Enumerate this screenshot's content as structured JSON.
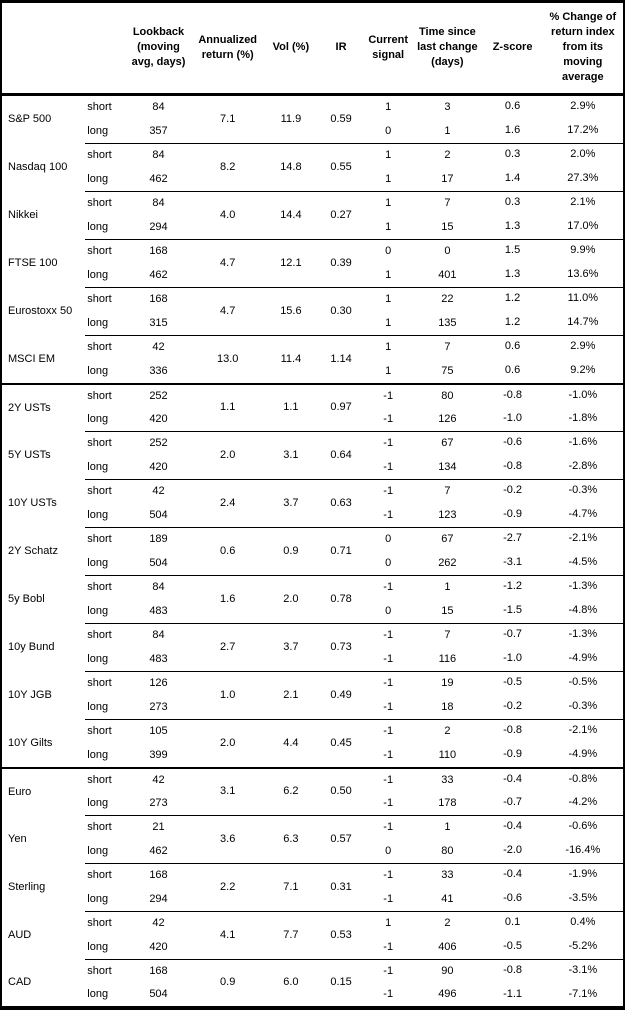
{
  "header_labels": {
    "asset": "",
    "position": "",
    "lookback": "Lookback (moving avg, days)",
    "annualized_return": "Annualized return (%)",
    "vol": "Vol (%)",
    "ir": "IR",
    "current_signal": "Current signal",
    "time_since": "Time since last change (days)",
    "z_score": "Z-score",
    "pct_change": "% Change of return index from its moving average"
  },
  "position_labels": [
    "short",
    "long"
  ],
  "colors": {
    "border": "#000000",
    "text": "#000000",
    "background": "#ffffff"
  },
  "sections": [
    [
      {
        "asset": "S&P 500",
        "annualized_return": "7.1",
        "vol": "11.9",
        "ir": "0.59",
        "rows": [
          {
            "position": "short",
            "lookback": "84",
            "signal": "1",
            "time_since": "3",
            "z_score": "0.6",
            "pct_change": "2.9%"
          },
          {
            "position": "long",
            "lookback": "357",
            "signal": "0",
            "time_since": "1",
            "z_score": "1.6",
            "pct_change": "17.2%"
          }
        ]
      },
      {
        "asset": "Nasdaq 100",
        "annualized_return": "8.2",
        "vol": "14.8",
        "ir": "0.55",
        "rows": [
          {
            "position": "short",
            "lookback": "84",
            "signal": "1",
            "time_since": "2",
            "z_score": "0.3",
            "pct_change": "2.0%"
          },
          {
            "position": "long",
            "lookback": "462",
            "signal": "1",
            "time_since": "17",
            "z_score": "1.4",
            "pct_change": "27.3%"
          }
        ]
      },
      {
        "asset": "Nikkei",
        "annualized_return": "4.0",
        "vol": "14.4",
        "ir": "0.27",
        "rows": [
          {
            "position": "short",
            "lookback": "84",
            "signal": "1",
            "time_since": "7",
            "z_score": "0.3",
            "pct_change": "2.1%"
          },
          {
            "position": "long",
            "lookback": "294",
            "signal": "1",
            "time_since": "15",
            "z_score": "1.3",
            "pct_change": "17.0%"
          }
        ]
      },
      {
        "asset": "FTSE 100",
        "annualized_return": "4.7",
        "vol": "12.1",
        "ir": "0.39",
        "rows": [
          {
            "position": "short",
            "lookback": "168",
            "signal": "0",
            "time_since": "0",
            "z_score": "1.5",
            "pct_change": "9.9%"
          },
          {
            "position": "long",
            "lookback": "462",
            "signal": "1",
            "time_since": "401",
            "z_score": "1.3",
            "pct_change": "13.6%"
          }
        ]
      },
      {
        "asset": "Eurostoxx 50",
        "annualized_return": "4.7",
        "vol": "15.6",
        "ir": "0.30",
        "rows": [
          {
            "position": "short",
            "lookback": "168",
            "signal": "1",
            "time_since": "22",
            "z_score": "1.2",
            "pct_change": "11.0%"
          },
          {
            "position": "long",
            "lookback": "315",
            "signal": "1",
            "time_since": "135",
            "z_score": "1.2",
            "pct_change": "14.7%"
          }
        ]
      },
      {
        "asset": "MSCI EM",
        "annualized_return": "13.0",
        "vol": "11.4",
        "ir": "1.14",
        "rows": [
          {
            "position": "short",
            "lookback": "42",
            "signal": "1",
            "time_since": "7",
            "z_score": "0.6",
            "pct_change": "2.9%"
          },
          {
            "position": "long",
            "lookback": "336",
            "signal": "1",
            "time_since": "75",
            "z_score": "0.6",
            "pct_change": "9.2%"
          }
        ]
      }
    ],
    [
      {
        "asset": "2Y USTs",
        "annualized_return": "1.1",
        "vol": "1.1",
        "ir": "0.97",
        "rows": [
          {
            "position": "short",
            "lookback": "252",
            "signal": "-1",
            "time_since": "80",
            "z_score": "-0.8",
            "pct_change": "-1.0%"
          },
          {
            "position": "long",
            "lookback": "420",
            "signal": "-1",
            "time_since": "126",
            "z_score": "-1.0",
            "pct_change": "-1.8%"
          }
        ]
      },
      {
        "asset": "5Y USTs",
        "annualized_return": "2.0",
        "vol": "3.1",
        "ir": "0.64",
        "rows": [
          {
            "position": "short",
            "lookback": "252",
            "signal": "-1",
            "time_since": "67",
            "z_score": "-0.6",
            "pct_change": "-1.6%"
          },
          {
            "position": "long",
            "lookback": "420",
            "signal": "-1",
            "time_since": "134",
            "z_score": "-0.8",
            "pct_change": "-2.8%"
          }
        ]
      },
      {
        "asset": "10Y USTs",
        "annualized_return": "2.4",
        "vol": "3.7",
        "ir": "0.63",
        "rows": [
          {
            "position": "short",
            "lookback": "42",
            "signal": "-1",
            "time_since": "7",
            "z_score": "-0.2",
            "pct_change": "-0.3%"
          },
          {
            "position": "long",
            "lookback": "504",
            "signal": "-1",
            "time_since": "123",
            "z_score": "-0.9",
            "pct_change": "-4.7%"
          }
        ]
      },
      {
        "asset": "2Y Schatz",
        "annualized_return": "0.6",
        "vol": "0.9",
        "ir": "0.71",
        "rows": [
          {
            "position": "short",
            "lookback": "189",
            "signal": "0",
            "time_since": "67",
            "z_score": "-2.7",
            "pct_change": "-2.1%"
          },
          {
            "position": "long",
            "lookback": "504",
            "signal": "0",
            "time_since": "262",
            "z_score": "-3.1",
            "pct_change": "-4.5%"
          }
        ]
      },
      {
        "asset": "5y Bobl",
        "annualized_return": "1.6",
        "vol": "2.0",
        "ir": "0.78",
        "rows": [
          {
            "position": "short",
            "lookback": "84",
            "signal": "-1",
            "time_since": "1",
            "z_score": "-1.2",
            "pct_change": "-1.3%"
          },
          {
            "position": "long",
            "lookback": "483",
            "signal": "0",
            "time_since": "15",
            "z_score": "-1.5",
            "pct_change": "-4.8%"
          }
        ]
      },
      {
        "asset": "10y Bund",
        "annualized_return": "2.7",
        "vol": "3.7",
        "ir": "0.73",
        "rows": [
          {
            "position": "short",
            "lookback": "84",
            "signal": "-1",
            "time_since": "7",
            "z_score": "-0.7",
            "pct_change": "-1.3%"
          },
          {
            "position": "long",
            "lookback": "483",
            "signal": "-1",
            "time_since": "116",
            "z_score": "-1.0",
            "pct_change": "-4.9%"
          }
        ]
      },
      {
        "asset": "10Y JGB",
        "annualized_return": "1.0",
        "vol": "2.1",
        "ir": "0.49",
        "rows": [
          {
            "position": "short",
            "lookback": "126",
            "signal": "-1",
            "time_since": "19",
            "z_score": "-0.5",
            "pct_change": "-0.5%"
          },
          {
            "position": "long",
            "lookback": "273",
            "signal": "-1",
            "time_since": "18",
            "z_score": "-0.2",
            "pct_change": "-0.3%"
          }
        ]
      },
      {
        "asset": "10Y Gilts",
        "annualized_return": "2.0",
        "vol": "4.4",
        "ir": "0.45",
        "rows": [
          {
            "position": "short",
            "lookback": "105",
            "signal": "-1",
            "time_since": "2",
            "z_score": "-0.8",
            "pct_change": "-2.1%"
          },
          {
            "position": "long",
            "lookback": "399",
            "signal": "-1",
            "time_since": "110",
            "z_score": "-0.9",
            "pct_change": "-4.9%"
          }
        ]
      }
    ],
    [
      {
        "asset": "Euro",
        "annualized_return": "3.1",
        "vol": "6.2",
        "ir": "0.50",
        "rows": [
          {
            "position": "short",
            "lookback": "42",
            "signal": "-1",
            "time_since": "33",
            "z_score": "-0.4",
            "pct_change": "-0.8%"
          },
          {
            "position": "long",
            "lookback": "273",
            "signal": "-1",
            "time_since": "178",
            "z_score": "-0.7",
            "pct_change": "-4.2%"
          }
        ]
      },
      {
        "asset": "Yen",
        "annualized_return": "3.6",
        "vol": "6.3",
        "ir": "0.57",
        "rows": [
          {
            "position": "short",
            "lookback": "21",
            "signal": "-1",
            "time_since": "1",
            "z_score": "-0.4",
            "pct_change": "-0.6%"
          },
          {
            "position": "long",
            "lookback": "462",
            "signal": "0",
            "time_since": "80",
            "z_score": "-2.0",
            "pct_change": "-16.4%"
          }
        ]
      },
      {
        "asset": "Sterling",
        "annualized_return": "2.2",
        "vol": "7.1",
        "ir": "0.31",
        "rows": [
          {
            "position": "short",
            "lookback": "168",
            "signal": "-1",
            "time_since": "33",
            "z_score": "-0.4",
            "pct_change": "-1.9%"
          },
          {
            "position": "long",
            "lookback": "294",
            "signal": "-1",
            "time_since": "41",
            "z_score": "-0.6",
            "pct_change": "-3.5%"
          }
        ]
      },
      {
        "asset": "AUD",
        "annualized_return": "4.1",
        "vol": "7.7",
        "ir": "0.53",
        "rows": [
          {
            "position": "short",
            "lookback": "42",
            "signal": "1",
            "time_since": "2",
            "z_score": "0.1",
            "pct_change": "0.4%"
          },
          {
            "position": "long",
            "lookback": "420",
            "signal": "-1",
            "time_since": "406",
            "z_score": "-0.5",
            "pct_change": "-5.2%"
          }
        ]
      },
      {
        "asset": "CAD",
        "annualized_return": "0.9",
        "vol": "6.0",
        "ir": "0.15",
        "rows": [
          {
            "position": "short",
            "lookback": "168",
            "signal": "-1",
            "time_since": "90",
            "z_score": "-0.8",
            "pct_change": "-3.1%"
          },
          {
            "position": "long",
            "lookback": "504",
            "signal": "-1",
            "time_since": "496",
            "z_score": "-1.1",
            "pct_change": "-7.1%"
          }
        ]
      }
    ]
  ]
}
